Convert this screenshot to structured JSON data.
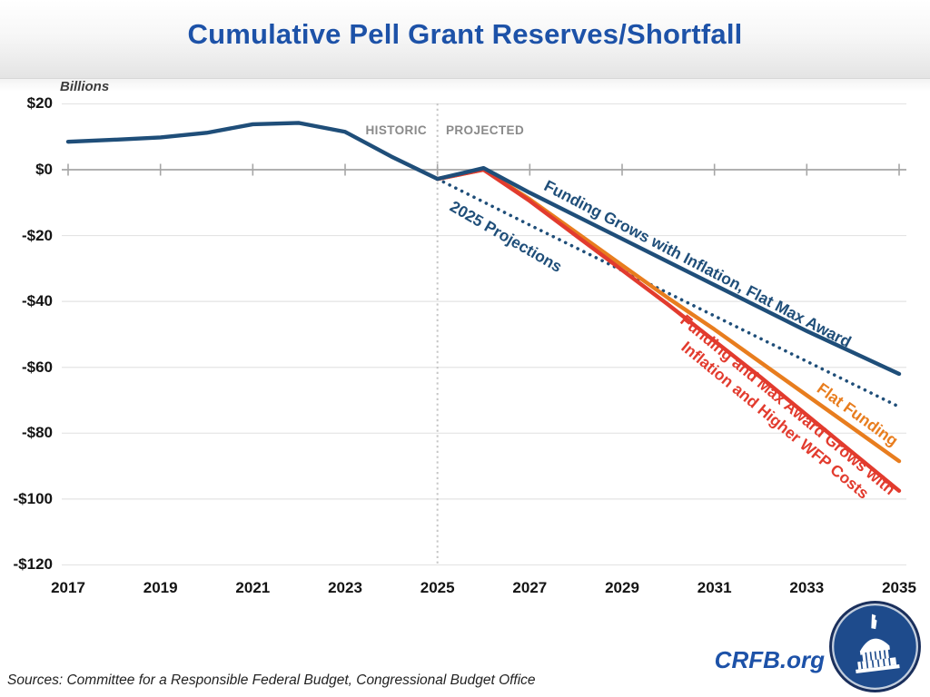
{
  "header": {
    "title": "Cumulative Pell Grant Reserves/Shortfall"
  },
  "period_labels": {
    "historic": "HISTORIC",
    "projected": "PROJECTED"
  },
  "footer": {
    "brand": "CRFB.org",
    "sources": "Sources: Committee for a Responsible Federal Budget, Congressional Budget Office",
    "logo_icon": "capitol-dome-logo"
  },
  "colors": {
    "title_blue": "#1d52a8",
    "navy": "#1f4e79",
    "orange": "#e87d1e",
    "red": "#e23b2e",
    "axis": "#a6a6a6",
    "gridline": "#e4e4e4",
    "separator": "#c6c6c6",
    "period_gray": "#8a8a8a"
  },
  "chart_data": {
    "type": "line",
    "title": "Cumulative Pell Grant Reserves/Shortfall",
    "ylabel": "Billions",
    "xlabel": "",
    "units": "billions of dollars",
    "xlim": [
      2017,
      2035
    ],
    "ylim": [
      -120,
      20
    ],
    "grid": true,
    "separator_year": 2025,
    "x_ticks": [
      2017,
      2019,
      2021,
      2023,
      2025,
      2027,
      2029,
      2031,
      2033,
      2035
    ],
    "y_ticks": [
      {
        "label": "$20",
        "value": 20
      },
      {
        "label": "$0",
        "value": 0
      },
      {
        "label": "-$20",
        "value": -20
      },
      {
        "label": "-$40",
        "value": -40
      },
      {
        "label": "-$60",
        "value": -60
      },
      {
        "label": "-$80",
        "value": -80
      },
      {
        "label": "-$100",
        "value": -100
      },
      {
        "label": "-$120",
        "value": -120
      }
    ],
    "series": [
      {
        "name": "Historic",
        "color": "#1f4e79",
        "line_style": "solid",
        "x": [
          2017,
          2018,
          2019,
          2020,
          2021,
          2022,
          2023,
          2024,
          2025
        ],
        "values": [
          8.5,
          9.1,
          9.8,
          11.2,
          13.8,
          14.2,
          11.5,
          4,
          -2.8
        ]
      },
      {
        "name": "Funding Grows with Inflation, Flat Max Award",
        "color": "#1f4e79",
        "line_style": "solid",
        "x": [
          2025,
          2026,
          2027,
          2028,
          2029,
          2030,
          2031,
          2032,
          2033,
          2034,
          2035
        ],
        "values": [
          -2.8,
          0.5,
          -7,
          -14,
          -21,
          -28,
          -35,
          -42,
          -49,
          -55.5,
          -62
        ]
      },
      {
        "name": "Flat Funding",
        "color": "#e87d1e",
        "line_style": "solid",
        "x": [
          2025,
          2026,
          2027,
          2028,
          2029,
          2030,
          2031,
          2032,
          2033,
          2034,
          2035
        ],
        "values": [
          -2.8,
          0,
          -9,
          -19,
          -29,
          -39,
          -48.5,
          -58.5,
          -68.5,
          -78.5,
          -88.5
        ]
      },
      {
        "name": "Funding and Max Award Grows with Inflation and Higher WFP Costs",
        "color": "#e23b2e",
        "line_style": "solid",
        "x": [
          2025,
          2026,
          2027,
          2028,
          2029,
          2030,
          2031,
          2032,
          2033,
          2034,
          2035
        ],
        "values": [
          -2.8,
          0,
          -9.5,
          -20,
          -30.5,
          -41,
          -52,
          -63,
          -74.5,
          -86,
          -97.5
        ]
      },
      {
        "name": "2025 Projections",
        "color": "#1f4e79",
        "line_style": "dotted",
        "x": [
          2025,
          2026,
          2027,
          2028,
          2029,
          2030,
          2031,
          2032,
          2033,
          2034,
          2035
        ],
        "values": [
          -2.8,
          -9.8,
          -16.8,
          -23.7,
          -30.6,
          -37.5,
          -44.4,
          -51.3,
          -58.2,
          -65.1,
          -72
        ]
      }
    ],
    "legend_position": "inline-rotated-labels"
  }
}
